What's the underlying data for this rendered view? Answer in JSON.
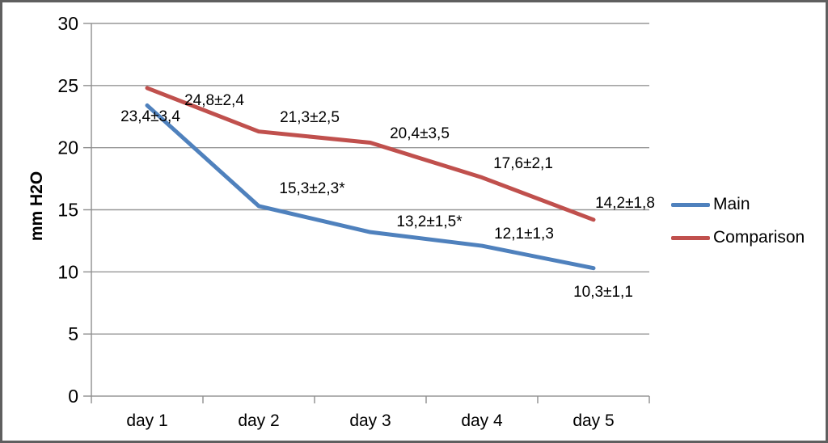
{
  "chart_data": {
    "type": "line",
    "title": "",
    "xlabel": "",
    "ylabel": "mm H2O",
    "categories": [
      "day 1",
      "day 2",
      "day 3",
      "day 4",
      "day 5"
    ],
    "ylim": [
      0,
      30
    ],
    "yticks": [
      0,
      5,
      10,
      15,
      20,
      25,
      30
    ],
    "grid": true,
    "legend_position": "right",
    "series": [
      {
        "name": "Main",
        "color": "#4F81BD",
        "values": [
          23.4,
          15.3,
          13.2,
          12.1,
          10.3
        ],
        "point_labels": [
          "23,4±3,4",
          "15,3±2,3*",
          "13,2±1,5*",
          "12,1±1,3",
          "10,3±1,1"
        ]
      },
      {
        "name": "Comparison",
        "color": "#C0504D",
        "values": [
          24.8,
          21.3,
          20.4,
          17.6,
          14.2
        ],
        "point_labels": [
          "24,8±2,4",
          "21,3±2,5",
          "20,4±3,5",
          "17,6±2,1",
          "14,2±1,8"
        ]
      }
    ],
    "colors": {
      "gridline": "#979797",
      "axis": "#8f8f8f",
      "text": "#000000",
      "frame_border": "#5f5f5f"
    }
  }
}
